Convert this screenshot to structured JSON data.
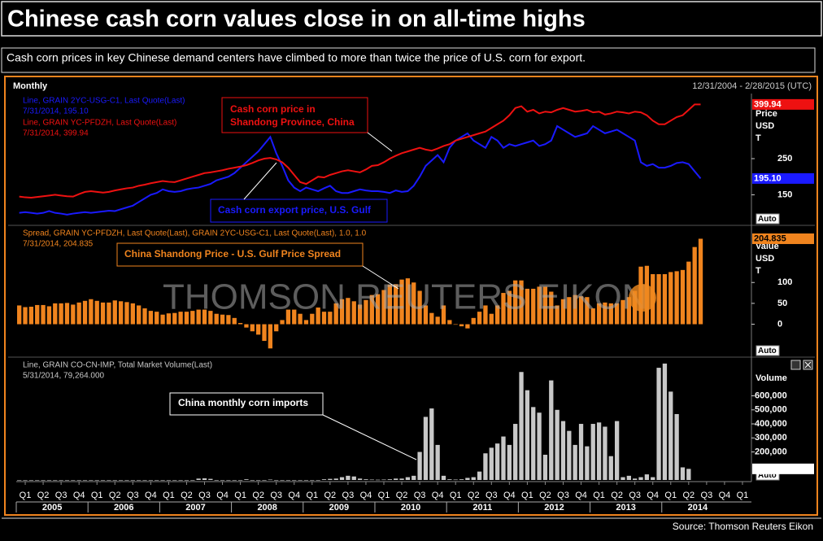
{
  "title": "Chinese cash corn values close in on all-time highs",
  "subtitle": "Cash corn prices in key Chinese demand centers have climbed to more than twice the price of U.S. corn for export.",
  "frequency": "Monthly",
  "date_range": "12/31/2004 - 2/28/2015 (UTC)",
  "watermark": "THOMSON REUTERS EIKON",
  "auto_label": "Auto",
  "source": "Source: Thomson Reuters Eikon",
  "chart_data": [
    {
      "type": "line",
      "ylim": [
        70,
        430
      ],
      "yticks": [
        150,
        250
      ],
      "axis_label": [
        "Price",
        "USD",
        "T"
      ],
      "series": [
        {
          "name": "Line, GRAIN 2YC-USG-C1, Last Quote(Last)",
          "last_quote": "7/31/2014, 195.10",
          "annotation": [
            "Cash corn export price, U.S. Gulf"
          ],
          "color": "#1a1aff",
          "values": [
            100,
            102,
            100,
            98,
            100,
            105,
            100,
            98,
            95,
            98,
            100,
            102,
            100,
            102,
            104,
            106,
            105,
            110,
            115,
            120,
            130,
            140,
            150,
            155,
            165,
            160,
            158,
            160,
            165,
            168,
            170,
            175,
            180,
            190,
            195,
            200,
            210,
            225,
            240,
            255,
            270,
            290,
            310,
            265,
            230,
            190,
            170,
            160,
            170,
            165,
            160,
            168,
            175,
            160,
            155,
            155,
            160,
            165,
            162,
            160,
            160,
            158,
            155,
            162,
            158,
            160,
            175,
            200,
            230,
            245,
            260,
            240,
            280,
            300,
            310,
            320,
            300,
            290,
            280,
            310,
            300,
            280,
            290,
            285,
            290,
            295,
            300,
            285,
            290,
            300,
            340,
            330,
            320,
            310,
            315,
            320,
            340,
            330,
            320,
            325,
            330,
            320,
            310,
            300,
            240,
            230,
            235,
            225,
            225,
            230,
            238,
            240,
            235,
            215,
            195.1,
            null,
            null,
            null,
            null,
            null,
            null,
            null,
            null
          ],
          "value_labels": [
            null,
            null,
            null,
            null,
            null,
            null,
            null,
            null,
            null,
            null,
            null,
            null,
            null,
            null,
            null,
            null,
            null,
            null,
            null,
            null,
            null,
            null,
            null,
            null,
            null,
            null,
            null,
            null,
            null,
            null,
            null,
            null,
            null,
            null,
            null,
            null,
            null,
            null,
            null,
            null,
            null,
            null,
            null,
            null,
            null,
            null,
            null,
            null,
            null,
            null,
            null,
            null,
            null,
            null,
            null,
            null,
            null,
            null,
            null,
            null,
            null,
            null,
            null,
            null,
            null,
            null,
            null,
            null,
            null,
            null,
            null,
            null,
            null,
            null,
            null,
            null,
            null,
            null,
            null,
            null,
            null,
            null,
            null,
            null,
            null,
            null,
            null,
            null,
            null,
            null,
            null,
            null,
            null,
            null,
            null,
            null,
            null,
            null,
            null,
            null,
            null,
            null,
            null,
            null,
            null,
            null,
            null,
            null,
            null,
            null,
            null,
            null,
            null,
            null,
            "195.10",
            null,
            null,
            null,
            null,
            null,
            null,
            null,
            null
          ]
        },
        {
          "name": "Line, GRAIN YC-PFDZH, Last Quote(Last)",
          "last_quote": "7/31/2014, 399.94",
          "annotation": [
            "Cash corn price in",
            "Shandong Province, China"
          ],
          "color": "#ee1111",
          "values": [
            145,
            143,
            142,
            144,
            146,
            148,
            150,
            148,
            146,
            145,
            152,
            158,
            160,
            158,
            156,
            158,
            162,
            165,
            168,
            170,
            175,
            178,
            182,
            185,
            188,
            186,
            185,
            190,
            195,
            200,
            205,
            210,
            212,
            215,
            218,
            222,
            225,
            228,
            232,
            238,
            245,
            250,
            252,
            248,
            240,
            225,
            205,
            185,
            180,
            190,
            200,
            198,
            205,
            210,
            215,
            218,
            215,
            212,
            220,
            230,
            232,
            240,
            250,
            258,
            265,
            270,
            275,
            280,
            275,
            272,
            278,
            285,
            290,
            300,
            305,
            310,
            315,
            320,
            325,
            335,
            345,
            355,
            370,
            390,
            395,
            380,
            385,
            375,
            380,
            378,
            385,
            390,
            385,
            380,
            382,
            385,
            378,
            380,
            372,
            375,
            380,
            378,
            375,
            380,
            378,
            370,
            355,
            345,
            345,
            355,
            365,
            370,
            385,
            400,
            399.94,
            null,
            null,
            null,
            null,
            null,
            null,
            null,
            null
          ]
        }
      ]
    },
    {
      "type": "bar",
      "ylim": [
        -75,
        235
      ],
      "yticks": [
        0,
        50,
        100
      ],
      "axis_label": [
        "Value",
        "USD",
        "T"
      ],
      "series": [
        {
          "name": "Spread, GRAIN YC-PFDZH, Last Quote(Last), GRAIN 2YC-USG-C1, Last Quote(Last),  1.0, 1.0",
          "last_quote": "7/31/2014, 204.835",
          "annotation": [
            "China Shandong Price - U.S. Gulf Price Spread"
          ],
          "color": "#f0841e",
          "values": [
            45,
            41,
            42,
            46,
            46,
            43,
            50,
            50,
            51,
            47,
            52,
            56,
            60,
            56,
            52,
            52,
            57,
            55,
            53,
            50,
            45,
            38,
            32,
            30,
            23,
            26,
            27,
            30,
            30,
            32,
            35,
            35,
            32,
            25,
            23,
            22,
            15,
            3,
            -8,
            -17,
            -25,
            -40,
            -58,
            -17,
            10,
            35,
            35,
            25,
            10,
            25,
            40,
            30,
            30,
            50,
            60,
            63,
            55,
            47,
            58,
            70,
            72,
            82,
            95,
            96,
            107,
            110,
            100,
            80,
            45,
            27,
            18,
            45,
            10,
            0,
            -5,
            -10,
            15,
            30,
            45,
            25,
            45,
            75,
            80,
            105,
            105,
            85,
            85,
            90,
            90,
            78,
            45,
            60,
            65,
            70,
            67,
            65,
            38,
            50,
            52,
            50,
            50,
            58,
            65,
            80,
            138,
            140,
            120,
            120,
            120,
            125,
            127,
            130,
            150,
            185,
            204.835,
            null,
            null,
            null,
            null,
            null,
            null,
            null,
            null
          ]
        }
      ]
    },
    {
      "type": "bar",
      "ylim": [
        0,
        870000
      ],
      "yticks": [
        {
          "value": 200000,
          "label": "200,000"
        },
        {
          "value": 300000,
          "label": "300,000"
        },
        {
          "value": 400000,
          "label": "400,000"
        },
        {
          "value": 500000,
          "label": "500,000"
        },
        {
          "value": 600000,
          "label": "600,000"
        }
      ],
      "axis_label": [
        "Volume"
      ],
      "categories": [
        null,
        "Q1",
        null,
        null,
        "Q2",
        null,
        null,
        "Q3",
        null,
        null,
        "Q4",
        null,
        null,
        "Q1",
        null,
        null,
        "Q2",
        null,
        null,
        "Q3",
        null,
        null,
        "Q4",
        null,
        null,
        "Q1",
        null,
        null,
        "Q2",
        null,
        null,
        "Q3",
        null,
        null,
        "Q4",
        null,
        null,
        "Q1",
        null,
        null,
        "Q2",
        null,
        null,
        "Q3",
        null,
        null,
        "Q4",
        null,
        null,
        "Q1",
        null,
        null,
        "Q2",
        null,
        null,
        "Q3",
        null,
        null,
        "Q4",
        null,
        null,
        "Q1",
        null,
        null,
        "Q2",
        null,
        null,
        "Q3",
        null,
        null,
        "Q4",
        null,
        null,
        "Q1",
        null,
        null,
        "Q2",
        null,
        null,
        "Q3",
        null,
        null,
        "Q4",
        null,
        null,
        "Q1",
        null,
        null,
        "Q2",
        null,
        null,
        "Q3",
        null,
        null,
        "Q4",
        null,
        null,
        "Q1",
        null,
        null,
        "Q2",
        null,
        null,
        "Q3",
        null,
        null,
        "Q4",
        null,
        null,
        "Q1",
        null,
        null,
        "Q2",
        null,
        null,
        "Q3",
        null,
        null,
        "Q4",
        null,
        null,
        "Q1",
        null
      ],
      "years": [
        "2005",
        "2006",
        "2007",
        "2008",
        "2009",
        "2010",
        "2011",
        "2012",
        "2013",
        "2014"
      ],
      "series": [
        {
          "name": "Line, GRAIN CO-CN-IMP, Total Market Volume(Last)",
          "last_quote": "5/31/2014, 79,264.000",
          "annotation": [
            "China monthly corn imports"
          ],
          "color": "#c8c8c8",
          "values": [
            0,
            0,
            0,
            0,
            0,
            0,
            0,
            0,
            0,
            0,
            0,
            0,
            0,
            0,
            0,
            0,
            0,
            0,
            0,
            0,
            0,
            0,
            0,
            0,
            0,
            0,
            0,
            0,
            0,
            0,
            10000,
            12000,
            8000,
            0,
            0,
            0,
            0,
            0,
            5000,
            0,
            0,
            0,
            3000,
            0,
            0,
            0,
            0,
            0,
            0,
            0,
            0,
            5000,
            8000,
            10000,
            20000,
            30000,
            25000,
            10000,
            5000,
            3000,
            2000,
            3000,
            5000,
            10000,
            10000,
            20000,
            30000,
            200000,
            450000,
            510000,
            250000,
            30000,
            5000,
            3000,
            5000,
            15000,
            20000,
            60000,
            190000,
            230000,
            260000,
            310000,
            250000,
            400000,
            770000,
            640000,
            520000,
            480000,
            180000,
            710000,
            500000,
            420000,
            350000,
            250000,
            400000,
            240000,
            400000,
            410000,
            380000,
            170000,
            420000,
            20000,
            30000,
            10000,
            20000,
            40000,
            20000,
            800000,
            830000,
            630000,
            470000,
            90000,
            79264,
            null,
            null,
            null,
            null,
            null,
            null,
            null,
            null,
            null,
            null
          ],
          "value_labels": [
            null,
            null,
            null,
            null,
            null,
            null,
            null,
            null,
            null,
            null,
            null,
            null,
            null,
            null,
            null,
            null,
            null,
            null,
            null,
            null,
            null,
            null,
            null,
            null,
            null,
            null,
            null,
            null,
            null,
            null,
            null,
            null,
            null,
            null,
            null,
            null,
            null,
            null,
            null,
            null,
            null,
            null,
            null,
            null,
            null,
            null,
            null,
            null,
            null,
            null,
            null,
            null,
            null,
            null,
            null,
            null,
            null,
            null,
            null,
            null,
            null,
            null,
            null,
            null,
            null,
            null,
            null,
            null,
            null,
            null,
            null,
            null,
            null,
            null,
            null,
            null,
            null,
            null,
            null,
            null,
            null,
            null,
            null,
            null,
            null,
            null,
            null,
            null,
            null,
            null,
            null,
            null,
            null,
            null,
            null,
            null,
            null,
            null,
            null,
            null,
            null,
            null,
            null,
            null,
            null,
            null,
            null,
            null,
            null,
            null,
            null,
            null,
            "79,264.000",
            null,
            null,
            null,
            null,
            null,
            null,
            null,
            null,
            null,
            null
          ]
        }
      ]
    }
  ]
}
